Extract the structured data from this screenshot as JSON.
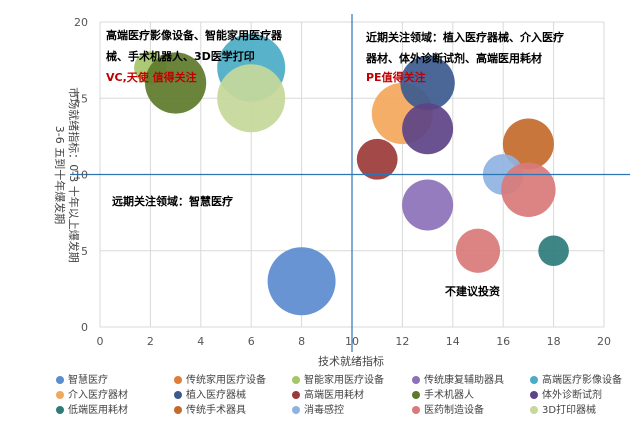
{
  "chart_data": {
    "type": "bubble",
    "xlabel": "技术就绪指标",
    "ylabel_lines": [
      "市场就绪指标：0-3  十年以上爆发期",
      "3-6  五到十年爆发期"
    ],
    "xlim": [
      0,
      20
    ],
    "ylim": [
      0,
      20
    ],
    "x_ticks": [
      0,
      2,
      4,
      6,
      8,
      10,
      12,
      14,
      16,
      18,
      20
    ],
    "y_ticks": [
      0,
      5,
      10,
      15,
      20
    ],
    "grid": true,
    "dividers": {
      "x": 10,
      "y": 10
    },
    "annotations": [
      {
        "name": "quadrant-top-left-text",
        "lines": [
          "高端医疗影像设备、智能家用医疗器",
          "械、手术机器人、3D医学打印"
        ],
        "color": "#000000",
        "bold": true
      },
      {
        "name": "quadrant-top-left-investor",
        "lines": [
          "VC,天使 值得关注"
        ],
        "color": "#c00000",
        "bold": true
      },
      {
        "name": "quadrant-top-right-text",
        "lines": [
          "近期关注领域：植入医疗器械、介入医疗",
          "器材、体外诊断试剂、高端医用耗材"
        ],
        "color": "#000000",
        "bold": true
      },
      {
        "name": "quadrant-top-right-investor",
        "lines": [
          "PE值得关注"
        ],
        "color": "#c00000",
        "bold": true
      },
      {
        "name": "quadrant-bottom-left-text",
        "lines": [
          "远期关注领域：智慧医疗"
        ],
        "color": "#000000",
        "bold": true
      },
      {
        "name": "quadrant-bottom-right-text",
        "lines": [
          "不建议投资"
        ],
        "color": "#000000",
        "bold": true
      }
    ],
    "series": [
      {
        "name": "智慧医疗",
        "color": "#5b8bd0",
        "points": [
          {
            "x": 8,
            "y": 3,
            "size": 1.0
          }
        ]
      },
      {
        "name": "传统家用医疗设备",
        "color": "#e07b39",
        "points": []
      },
      {
        "name": "智能家用医疗设备",
        "color": "#a5c569",
        "points": [
          {
            "x": 2,
            "y": 17,
            "size": 0.48
          }
        ]
      },
      {
        "name": "传统康复辅助器具",
        "color": "#8b71b8",
        "points": [
          {
            "x": 13,
            "y": 8,
            "size": 0.75
          }
        ]
      },
      {
        "name": "高端医疗影像设备",
        "color": "#4aacc6",
        "points": [
          {
            "x": 6,
            "y": 17,
            "size": 1.0
          }
        ]
      },
      {
        "name": "介入医疗器材",
        "color": "#f3a75b",
        "points": [
          {
            "x": 12,
            "y": 14,
            "size": 0.9
          }
        ]
      },
      {
        "name": "植入医疗器械",
        "color": "#3b5a8f",
        "points": [
          {
            "x": 13,
            "y": 16,
            "size": 0.8
          }
        ]
      },
      {
        "name": "高端医用耗材",
        "color": "#9b3a38",
        "points": [
          {
            "x": 11,
            "y": 11,
            "size": 0.6
          }
        ]
      },
      {
        "name": "手术机器人",
        "color": "#5e7a2a",
        "points": [
          {
            "x": 3,
            "y": 16,
            "size": 0.9
          }
        ]
      },
      {
        "name": "体外诊断试剂",
        "color": "#5d4387",
        "points": [
          {
            "x": 13,
            "y": 13,
            "size": 0.75
          }
        ]
      },
      {
        "name": "低端医用耗材",
        "color": "#2e7b7c",
        "points": [
          {
            "x": 18,
            "y": 5,
            "size": 0.45
          }
        ]
      },
      {
        "name": "传统手术器具",
        "color": "#c36a2b",
        "points": [
          {
            "x": 17,
            "y": 12,
            "size": 0.75
          }
        ]
      },
      {
        "name": "消毒感控",
        "color": "#8fb3e1",
        "points": [
          {
            "x": 16,
            "y": 10,
            "size": 0.6
          }
        ]
      },
      {
        "name": "医药制造设备",
        "color": "#d97a78",
        "points": [
          {
            "x": 17,
            "y": 9,
            "size": 0.8
          },
          {
            "x": 15,
            "y": 5,
            "size": 0.65
          }
        ]
      },
      {
        "name": "3D打印器械",
        "color": "#c6d89a",
        "points": [
          {
            "x": 6,
            "y": 15,
            "size": 1.0
          }
        ]
      }
    ]
  }
}
